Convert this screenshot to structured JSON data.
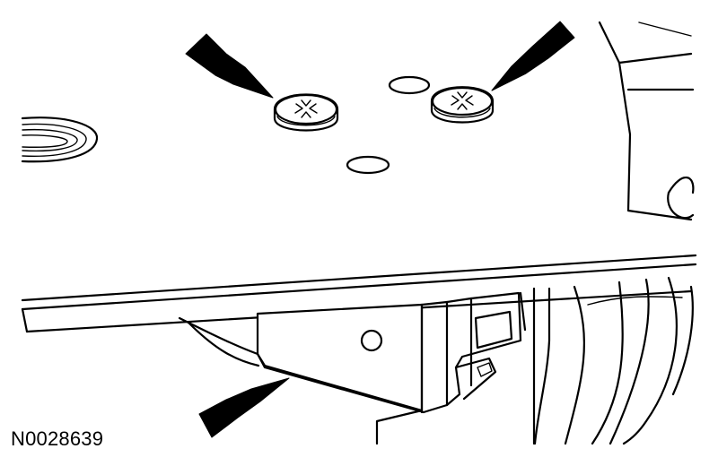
{
  "figure": {
    "id_label": "N0028639"
  },
  "arrows": [
    {
      "id": "arrow-upper-left",
      "points_to": "screw-left"
    },
    {
      "id": "arrow-upper-right",
      "points_to": "screw-right"
    },
    {
      "id": "arrow-lower",
      "points_to": "bracket"
    }
  ],
  "colors": {
    "line": "#000000",
    "background": "#ffffff"
  }
}
